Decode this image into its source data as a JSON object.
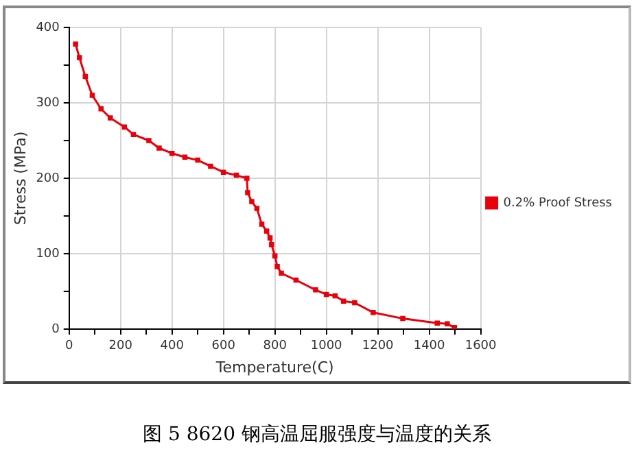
{
  "chart_data": {
    "type": "line",
    "title": "图 5 8620 钢高温屈服强度与温度的关系",
    "xlabel": "Temperature(C)",
    "ylabel": "Stress (MPa)",
    "series": [
      {
        "name": "0.2% Proof Stress",
        "color": "#e8000b",
        "x": [
          25,
          40,
          63,
          90,
          124,
          160,
          215,
          250,
          310,
          350,
          400,
          450,
          500,
          550,
          600,
          650,
          691,
          694,
          710,
          730,
          749,
          768,
          781,
          787,
          800,
          809,
          825,
          882,
          958,
          1000,
          1034,
          1067,
          1110,
          1182,
          1297,
          1431,
          1470,
          1498
        ],
        "values": [
          378,
          360,
          335,
          310,
          292,
          280,
          268,
          258,
          250,
          240,
          233,
          228,
          224,
          216,
          208,
          204,
          200,
          181,
          169,
          160,
          139,
          130,
          121,
          112,
          97,
          83,
          74,
          65,
          52,
          46,
          44,
          37,
          35,
          22,
          14,
          8,
          7,
          2
        ]
      }
    ],
    "xlim": [
      0,
      1600
    ],
    "ylim": [
      0,
      400
    ],
    "xticks": [
      0,
      {
        "value": 100,
        "label": null
      },
      200,
      {
        "value": 300,
        "label": null
      },
      400,
      {
        "value": 500,
        "label": null
      },
      600,
      {
        "value": 700,
        "label": null
      },
      800,
      {
        "value": 900,
        "label": null
      },
      1000,
      {
        "value": 1100,
        "label": null
      },
      1200,
      {
        "value": 1300,
        "label": null
      },
      1400,
      {
        "value": 1500,
        "label": null
      },
      1600
    ],
    "yticks": [
      0,
      {
        "value": 50,
        "label": null
      },
      100,
      {
        "value": 150,
        "label": null
      },
      200,
      {
        "value": 250,
        "label": null
      },
      300,
      {
        "value": 350,
        "label": null
      },
      400
    ],
    "grid": true,
    "legend": "right",
    "marker": "square",
    "line_style": "solid"
  }
}
